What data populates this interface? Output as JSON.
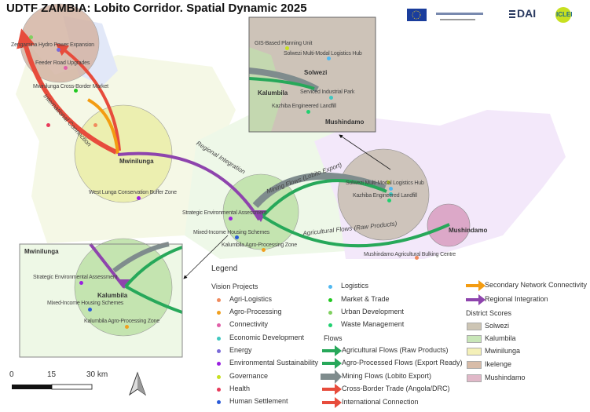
{
  "title": "UDTF ZAMBIA: Lobito Corridor. Spatial Dynamic 2025",
  "logos": {
    "dai": "DAI",
    "iclei": "ICLEI"
  },
  "map": {
    "districts": [
      "Ikelenge",
      "Mwinilunga",
      "Kalumbila",
      "Solwezi",
      "Mushindamo"
    ],
    "district_labels": {
      "mwinilunga": "Mwinilunga",
      "mushindamo": "Mushindamo",
      "solwezi": "Solwezi",
      "kalumbila": "Kalumbila"
    },
    "projects": [
      {
        "name": "Zengamina Hydro Power Expansion",
        "category": "Energy"
      },
      {
        "name": "Feeder Road Upgrades",
        "category": "Connectivity"
      },
      {
        "name": "Mwinilunga Cross-Border Market",
        "category": "Market & Trade"
      },
      {
        "name": "West Lunga Conservation Buffer Zone",
        "category": "Environmental Sustainability"
      },
      {
        "name": "Strategic Environmental Assessment",
        "category": "Environmental Sustainability"
      },
      {
        "name": "Mixed-Income Housing Schemes",
        "category": "Human Settlement"
      },
      {
        "name": "Kalumbila Agro-Processing Zone",
        "category": "Agro-Processing"
      },
      {
        "name": "Solwezi Multi-Modal Logistics Hub",
        "category": "Logistics"
      },
      {
        "name": "Kazhiba Engineered Landfill",
        "category": "Waste Management"
      },
      {
        "name": "Mushindamo Agricultural Bulking Centre",
        "category": "Agri-Logistics"
      },
      {
        "name": "GIS-Based Planning Unit",
        "category": "Governance"
      },
      {
        "name": "Serviced Industrial Park",
        "category": "Economic Development"
      }
    ],
    "flow_labels": {
      "international": "International Connection",
      "regional": "Regional Integration",
      "mining": "Mining Flows (Lobito Export)",
      "agricultural": "Agricultural Flows (Raw Products)"
    }
  },
  "scale_bar": {
    "labels": [
      "0",
      "15",
      "30 km"
    ]
  },
  "legend": {
    "title": "Legend",
    "vision_title": "Vision Projects",
    "vision": [
      {
        "label": "Agri-Logistics",
        "color": "#f08a5d"
      },
      {
        "label": "Agro-Processing",
        "color": "#f0a020"
      },
      {
        "label": "Connectivity",
        "color": "#e060a8"
      },
      {
        "label": "Economic Development",
        "color": "#40c8c0"
      },
      {
        "label": "Energy",
        "color": "#7a6ad8"
      },
      {
        "label": "Environmental Sustainability",
        "color": "#9a20e0"
      },
      {
        "label": "Governance",
        "color": "#c8e020"
      },
      {
        "label": "Health",
        "color": "#e83a5a"
      },
      {
        "label": "Human Settlement",
        "color": "#2a5ad8"
      },
      {
        "label": "Logistics",
        "color": "#50b8f0"
      },
      {
        "label": "Market & Trade",
        "color": "#20c820"
      },
      {
        "label": "Urban Development",
        "color": "#80d060"
      },
      {
        "label": "Waste Management",
        "color": "#20d070"
      }
    ],
    "flows_title": "Flows",
    "flows": [
      {
        "label": "Agricultural Flows (Raw Products)",
        "color": "#27a85a"
      },
      {
        "label": "Agro-Processed Flows (Export Ready)",
        "color": "#27a85a"
      },
      {
        "label": "Mining Flows (Lobito Export)",
        "color": "#7f8c8d"
      },
      {
        "label": "Cross-Border Trade (Angola/DRC)",
        "color": "#e74c3c"
      },
      {
        "label": "International Connection",
        "color": "#e74c3c"
      },
      {
        "label": "Secondary Network Connectivity",
        "color": "#f39c12"
      },
      {
        "label": "Regional Integration",
        "color": "#8e44ad"
      }
    ],
    "districts_title": "District Scores",
    "districts": [
      {
        "label": "Solwezi",
        "color": "#cdc5b4"
      },
      {
        "label": "Kalumbila",
        "color": "#c8e6b8"
      },
      {
        "label": "Mwinilunga",
        "color": "#f4f0b8"
      },
      {
        "label": "Ikelenge",
        "color": "#d8bca8"
      },
      {
        "label": "Mushindamo",
        "color": "#e0b8c8"
      }
    ]
  }
}
